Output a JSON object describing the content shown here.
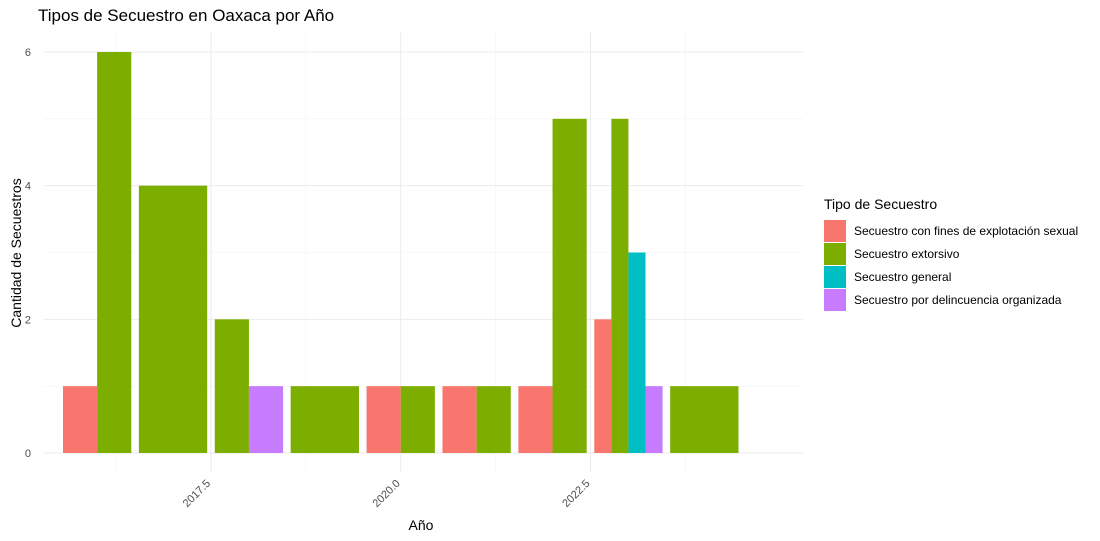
{
  "chart_data": {
    "type": "bar",
    "title": "Tipos de Secuestro en Oaxaca por Año",
    "xlabel": "Año",
    "ylabel": "Cantidad de Secuestros",
    "xlim": [
      2015.3,
      2025.3
    ],
    "ylim": [
      0,
      6.3
    ],
    "x_ticks": [
      2017.5,
      2020.0,
      2022.5
    ],
    "x_tick_labels": [
      "2017.5",
      "2020.0",
      "2022.5"
    ],
    "y_ticks": [
      0,
      2,
      4,
      6
    ],
    "y_tick_labels": [
      "0",
      "2",
      "4",
      "6"
    ],
    "grid": true,
    "legend_position": "right",
    "legend_title": "Tipo de Secuestro",
    "series": [
      {
        "name": "Secuestro con fines de explotación sexual",
        "color": "#F8766D",
        "points": [
          {
            "x": 2016,
            "y": 1
          },
          {
            "x": 2020,
            "y": 1
          },
          {
            "x": 2021,
            "y": 1
          },
          {
            "x": 2022,
            "y": 1
          },
          {
            "x": 2023,
            "y": 2
          }
        ]
      },
      {
        "name": "Secuestro extorsivo",
        "color": "#7CAE00",
        "points": [
          {
            "x": 2016,
            "y": 6
          },
          {
            "x": 2017,
            "y": 4
          },
          {
            "x": 2018,
            "y": 2
          },
          {
            "x": 2019,
            "y": 1
          },
          {
            "x": 2020,
            "y": 1
          },
          {
            "x": 2021,
            "y": 1
          },
          {
            "x": 2022,
            "y": 5
          },
          {
            "x": 2023,
            "y": 5
          },
          {
            "x": 2024,
            "y": 1
          }
        ]
      },
      {
        "name": "Secuestro general",
        "color": "#00BFC4",
        "points": [
          {
            "x": 2023,
            "y": 3
          }
        ]
      },
      {
        "name": "Secuestro por delincuencia organizada",
        "color": "#C77CFF",
        "points": [
          {
            "x": 2018,
            "y": 1
          },
          {
            "x": 2023,
            "y": 1
          }
        ]
      }
    ]
  }
}
